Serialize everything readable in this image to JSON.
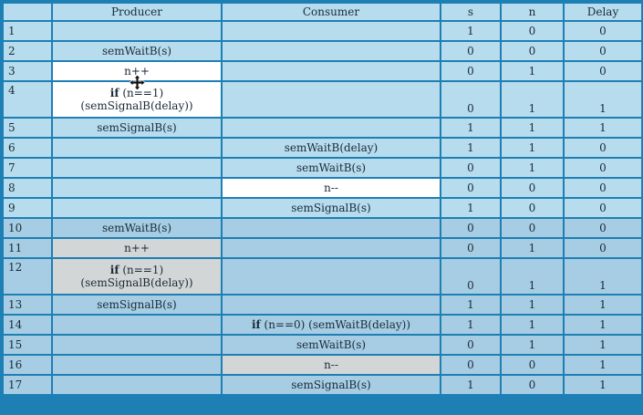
{
  "headers": [
    "",
    "Producer",
    "Consumer",
    "s",
    "n",
    "Delay"
  ],
  "rows": [
    {
      "num": "1",
      "producer": "",
      "producer_kw": "",
      "producer_rest": "",
      "consumer": "",
      "consumer_kw": "",
      "consumer_rest": "",
      "s": "1",
      "n": "0",
      "delay": "0"
    },
    {
      "num": "2",
      "producer": "semWaitB(s)",
      "producer_kw": "",
      "producer_rest": "",
      "consumer": "",
      "consumer_kw": "",
      "consumer_rest": "",
      "s": "0",
      "n": "0",
      "delay": "0"
    },
    {
      "num": "3",
      "producer": "n++",
      "producer_kw": "",
      "producer_rest": "",
      "consumer": "",
      "consumer_kw": "",
      "consumer_rest": "",
      "s": "0",
      "n": "1",
      "delay": "0"
    },
    {
      "num": "4",
      "producer": "",
      "producer_kw": "if",
      "producer_rest": " (n==1)",
      "producer_line2": "(semSignalB(delay))",
      "consumer": "",
      "consumer_kw": "",
      "consumer_rest": "",
      "s": "0",
      "n": "1",
      "delay": "1"
    },
    {
      "num": "5",
      "producer": "semSignalB(s)",
      "producer_kw": "",
      "producer_rest": "",
      "consumer": "",
      "consumer_kw": "",
      "consumer_rest": "",
      "s": "1",
      "n": "1",
      "delay": "1"
    },
    {
      "num": "6",
      "producer": "",
      "producer_kw": "",
      "producer_rest": "",
      "consumer": "semWaitB(delay)",
      "consumer_kw": "",
      "consumer_rest": "",
      "s": "1",
      "n": "1",
      "delay": "0"
    },
    {
      "num": "7",
      "producer": "",
      "producer_kw": "",
      "producer_rest": "",
      "consumer": "semWaitB(s)",
      "consumer_kw": "",
      "consumer_rest": "",
      "s": "0",
      "n": "1",
      "delay": "0"
    },
    {
      "num": "8",
      "producer": "",
      "producer_kw": "",
      "producer_rest": "",
      "consumer": "n--",
      "consumer_kw": "",
      "consumer_rest": "",
      "s": "0",
      "n": "0",
      "delay": "0"
    },
    {
      "num": "9",
      "producer": "",
      "producer_kw": "",
      "producer_rest": "",
      "consumer": "semSignalB(s)",
      "consumer_kw": "",
      "consumer_rest": "",
      "s": "1",
      "n": "0",
      "delay": "0"
    },
    {
      "num": "10",
      "producer": "semWaitB(s)",
      "producer_kw": "",
      "producer_rest": "",
      "consumer": "",
      "consumer_kw": "",
      "consumer_rest": "",
      "s": "0",
      "n": "0",
      "delay": "0"
    },
    {
      "num": "11",
      "producer": "n++",
      "producer_kw": "",
      "producer_rest": "",
      "consumer": "",
      "consumer_kw": "",
      "consumer_rest": "",
      "s": "0",
      "n": "1",
      "delay": "0"
    },
    {
      "num": "12",
      "producer": "",
      "producer_kw": "if",
      "producer_rest": " (n==1)",
      "producer_line2": "(semSignalB(delay))",
      "consumer": "",
      "consumer_kw": "",
      "consumer_rest": "",
      "s": "0",
      "n": "1",
      "delay": "1"
    },
    {
      "num": "13",
      "producer": "semSignalB(s)",
      "producer_kw": "",
      "producer_rest": "",
      "consumer": "",
      "consumer_kw": "",
      "consumer_rest": "",
      "s": "1",
      "n": "1",
      "delay": "1"
    },
    {
      "num": "14",
      "producer": "",
      "producer_kw": "",
      "producer_rest": "",
      "consumer": "",
      "consumer_kw": "if",
      "consumer_rest": " (n==0) (semWaitB(delay))",
      "s": "1",
      "n": "1",
      "delay": "1"
    },
    {
      "num": "15",
      "producer": "",
      "producer_kw": "",
      "producer_rest": "",
      "consumer": "semWaitB(s)",
      "consumer_kw": "",
      "consumer_rest": "",
      "s": "0",
      "n": "1",
      "delay": "1"
    },
    {
      "num": "16",
      "producer": "",
      "producer_kw": "",
      "producer_rest": "",
      "consumer": "n--",
      "consumer_kw": "",
      "consumer_rest": "",
      "s": "0",
      "n": "0",
      "delay": "1"
    },
    {
      "num": "17",
      "producer": "",
      "producer_kw": "",
      "producer_rest": "",
      "consumer": "semSignalB(s)",
      "consumer_kw": "",
      "consumer_rest": "",
      "s": "1",
      "n": "0",
      "delay": "1"
    }
  ],
  "colors": {
    "border": "#1e7fb4",
    "cell": "#b6dcee",
    "highlight_white": "#ffffff",
    "highlight_gray": "#d8dcdd"
  },
  "icons": {
    "cursor": "move-cursor-icon"
  }
}
